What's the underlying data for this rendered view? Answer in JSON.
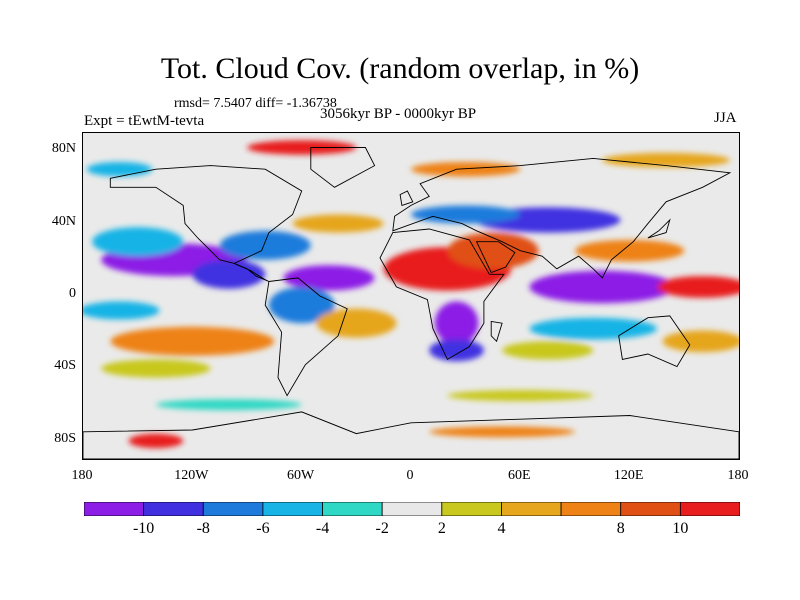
{
  "title": "Tot. Cloud Cov. (random overlap, in %)",
  "stats": "rmsd= 7.5407 diff= -1.36738",
  "period": "3056kyr BP - 0000kyr BP",
  "experiment": "Expt = tEwtM-tevta",
  "season": "JJA",
  "map": {
    "lat_range": [
      -90,
      90
    ],
    "lon_range": [
      -180,
      180
    ],
    "lat_labels": [
      "80N",
      "40N",
      "0",
      "40S",
      "80S"
    ],
    "lon_labels": [
      "180",
      "120W",
      "60W",
      "0",
      "60E",
      "120E",
      "180"
    ]
  },
  "colorbar": {
    "colors": [
      "#8c1ee6",
      "#4030e0",
      "#1e7bdc",
      "#18b4e6",
      "#2ed8c4",
      "#e8e8e8",
      "#c8c81e",
      "#e6a61e",
      "#ee8216",
      "#e05014",
      "#e81e1e"
    ],
    "tick_labels": [
      "-10",
      "-8",
      "-6",
      "-4",
      "-2",
      "2",
      "4",
      "8",
      "10"
    ]
  },
  "anomaly_regions": [
    {
      "lon": -130,
      "lat": 20,
      "rx": 40,
      "ry": 9,
      "level": 0
    },
    {
      "lon": -100,
      "lat": 12,
      "rx": 20,
      "ry": 8,
      "level": 1
    },
    {
      "lon": -150,
      "lat": 30,
      "rx": 25,
      "ry": 8,
      "level": 3
    },
    {
      "lon": -160,
      "lat": -8,
      "rx": 22,
      "ry": 5,
      "level": 3
    },
    {
      "lon": -120,
      "lat": -25,
      "rx": 45,
      "ry": 8,
      "level": 8
    },
    {
      "lon": -80,
      "lat": 28,
      "rx": 25,
      "ry": 8,
      "level": 2
    },
    {
      "lon": -45,
      "lat": 10,
      "rx": 25,
      "ry": 7,
      "level": 0
    },
    {
      "lon": -60,
      "lat": -5,
      "rx": 18,
      "ry": 10,
      "level": 2
    },
    {
      "lon": -30,
      "lat": -15,
      "rx": 22,
      "ry": 8,
      "level": 7
    },
    {
      "lon": -40,
      "lat": 40,
      "rx": 25,
      "ry": 5,
      "level": 7
    },
    {
      "lon": 20,
      "lat": 15,
      "rx": 35,
      "ry": 12,
      "level": 10
    },
    {
      "lon": 45,
      "lat": 25,
      "rx": 25,
      "ry": 10,
      "level": 9
    },
    {
      "lon": 25,
      "lat": -15,
      "rx": 12,
      "ry": 12,
      "level": 0
    },
    {
      "lon": 25,
      "lat": -30,
      "rx": 15,
      "ry": 6,
      "level": 1
    },
    {
      "lon": 75,
      "lat": 42,
      "rx": 40,
      "ry": 7,
      "level": 1
    },
    {
      "lon": 30,
      "lat": 45,
      "rx": 30,
      "ry": 5,
      "level": 2
    },
    {
      "lon": 105,
      "lat": 5,
      "rx": 40,
      "ry": 9,
      "level": 0
    },
    {
      "lon": 100,
      "lat": -18,
      "rx": 35,
      "ry": 6,
      "level": 3
    },
    {
      "lon": 120,
      "lat": 25,
      "rx": 30,
      "ry": 6,
      "level": 8
    },
    {
      "lon": 160,
      "lat": 5,
      "rx": 25,
      "ry": 6,
      "level": 10
    },
    {
      "lon": 160,
      "lat": -25,
      "rx": 22,
      "ry": 6,
      "level": 7
    },
    {
      "lon": 75,
      "lat": -30,
      "rx": 25,
      "ry": 5,
      "level": 6
    },
    {
      "lon": -140,
      "lat": -40,
      "rx": 30,
      "ry": 5,
      "level": 6
    },
    {
      "lon": -60,
      "lat": 82,
      "rx": 30,
      "ry": 4,
      "level": 10
    },
    {
      "lon": 140,
      "lat": 75,
      "rx": 35,
      "ry": 4,
      "level": 7
    },
    {
      "lon": 30,
      "lat": 70,
      "rx": 30,
      "ry": 4,
      "level": 8
    },
    {
      "lon": -140,
      "lat": -80,
      "rx": 15,
      "ry": 4,
      "level": 10
    },
    {
      "lon": 50,
      "lat": -75,
      "rx": 40,
      "ry": 3,
      "level": 8
    },
    {
      "lon": -160,
      "lat": 70,
      "rx": 18,
      "ry": 4,
      "level": 3
    },
    {
      "lon": 60,
      "lat": -55,
      "rx": 40,
      "ry": 3,
      "level": 6
    },
    {
      "lon": -100,
      "lat": -60,
      "rx": 40,
      "ry": 3,
      "level": 4
    }
  ],
  "continents": [
    {
      "name": "north-america",
      "points": [
        [
          -165,
          65
        ],
        [
          -140,
          70
        ],
        [
          -110,
          72
        ],
        [
          -80,
          70
        ],
        [
          -60,
          58
        ],
        [
          -65,
          45
        ],
        [
          -78,
          35
        ],
        [
          -82,
          25
        ],
        [
          -97,
          18
        ],
        [
          -105,
          20
        ],
        [
          -117,
          32
        ],
        [
          -124,
          40
        ],
        [
          -125,
          50
        ],
        [
          -140,
          60
        ],
        [
          -165,
          60
        ]
      ]
    },
    {
      "name": "central-america",
      "points": [
        [
          -97,
          18
        ],
        [
          -90,
          15
        ],
        [
          -85,
          11
        ],
        [
          -78,
          8
        ],
        [
          -80,
          9
        ],
        [
          -88,
          14
        ],
        [
          -95,
          17
        ]
      ]
    },
    {
      "name": "south-america",
      "points": [
        [
          -78,
          8
        ],
        [
          -62,
          10
        ],
        [
          -50,
          0
        ],
        [
          -35,
          -7
        ],
        [
          -40,
          -22
        ],
        [
          -58,
          -38
        ],
        [
          -68,
          -55
        ],
        [
          -73,
          -45
        ],
        [
          -71,
          -20
        ],
        [
          -80,
          -5
        ]
      ]
    },
    {
      "name": "greenland",
      "points": [
        [
          -55,
          82
        ],
        [
          -25,
          82
        ],
        [
          -20,
          72
        ],
        [
          -42,
          60
        ],
        [
          -55,
          70
        ]
      ]
    },
    {
      "name": "eurasia",
      "points": [
        [
          -10,
          36
        ],
        [
          -9,
          44
        ],
        [
          0,
          50
        ],
        [
          10,
          55
        ],
        [
          5,
          62
        ],
        [
          25,
          70
        ],
        [
          60,
          72
        ],
        [
          100,
          76
        ],
        [
          140,
          72
        ],
        [
          175,
          68
        ],
        [
          160,
          60
        ],
        [
          140,
          52
        ],
        [
          130,
          40
        ],
        [
          122,
          30
        ],
        [
          110,
          20
        ],
        [
          105,
          10
        ],
        [
          100,
          15
        ],
        [
          92,
          22
        ],
        [
          80,
          15
        ],
        [
          72,
          22
        ],
        [
          60,
          25
        ],
        [
          50,
          30
        ],
        [
          36,
          36
        ],
        [
          28,
          40
        ],
        [
          12,
          44
        ]
      ]
    },
    {
      "name": "africa",
      "points": [
        [
          -17,
          21
        ],
        [
          -10,
          35
        ],
        [
          10,
          37
        ],
        [
          32,
          31
        ],
        [
          43,
          12
        ],
        [
          51,
          12
        ],
        [
          40,
          -3
        ],
        [
          40,
          -15
        ],
        [
          32,
          -28
        ],
        [
          20,
          -35
        ],
        [
          12,
          -18
        ],
        [
          9,
          -2
        ],
        [
          -8,
          5
        ]
      ]
    },
    {
      "name": "arabia",
      "points": [
        [
          36,
          30
        ],
        [
          48,
          30
        ],
        [
          57,
          24
        ],
        [
          52,
          16
        ],
        [
          44,
          13
        ]
      ]
    },
    {
      "name": "australia",
      "points": [
        [
          114,
          -22
        ],
        [
          130,
          -12
        ],
        [
          142,
          -11
        ],
        [
          153,
          -27
        ],
        [
          146,
          -39
        ],
        [
          130,
          -32
        ],
        [
          116,
          -35
        ]
      ]
    },
    {
      "name": "antarctica",
      "points": [
        [
          -180,
          -75
        ],
        [
          -120,
          -74
        ],
        [
          -60,
          -64
        ],
        [
          -30,
          -76
        ],
        [
          0,
          -70
        ],
        [
          60,
          -68
        ],
        [
          120,
          -66
        ],
        [
          180,
          -75
        ],
        [
          180,
          -90
        ],
        [
          -180,
          -90
        ]
      ]
    },
    {
      "name": "madagascar",
      "points": [
        [
          44,
          -14
        ],
        [
          50,
          -15
        ],
        [
          47,
          -25
        ],
        [
          44,
          -22
        ]
      ]
    },
    {
      "name": "uk",
      "points": [
        [
          -5,
          50
        ],
        [
          1,
          52
        ],
        [
          -2,
          58
        ],
        [
          -6,
          56
        ]
      ]
    },
    {
      "name": "japan",
      "points": [
        [
          130,
          32
        ],
        [
          140,
          35
        ],
        [
          142,
          42
        ],
        [
          136,
          36
        ]
      ]
    }
  ]
}
